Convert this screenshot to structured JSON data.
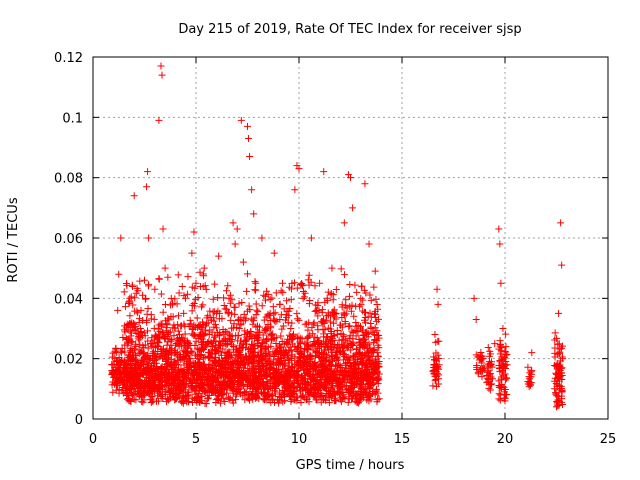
{
  "chart_data": {
    "type": "scatter",
    "title": "Day 215 of 2019, Rate Of TEC Index for receiver sjsp",
    "xlabel": "GPS time / hours",
    "ylabel": "ROTI / TECUs",
    "xlim": [
      0,
      25
    ],
    "ylim": [
      0,
      0.12
    ],
    "xticks": [
      "0",
      "5",
      "10",
      "15",
      "20",
      "25"
    ],
    "yticks": [
      "0",
      "0.02",
      "0.04",
      "0.06",
      "0.08",
      "0.1",
      "0.12"
    ],
    "grid": true,
    "marker": "+",
    "color": "#ff0000",
    "series": [
      {
        "points": [
          [
            1.0,
            0.016
          ],
          [
            1.1,
            0.012
          ],
          [
            1.15,
            0.022
          ],
          [
            1.2,
            0.036
          ],
          [
            1.25,
            0.048
          ],
          [
            1.3,
            0.018
          ],
          [
            1.35,
            0.06
          ],
          [
            1.4,
            0.014
          ],
          [
            1.45,
            0.027
          ],
          [
            1.7,
            0.01
          ],
          [
            1.8,
            0.02
          ],
          [
            1.9,
            0.015
          ],
          [
            2.0,
            0.074
          ],
          [
            2.05,
            0.021
          ],
          [
            2.1,
            0.012
          ],
          [
            2.2,
            0.018
          ],
          [
            2.3,
            0.03
          ],
          [
            2.4,
            0.011
          ],
          [
            2.5,
            0.046
          ],
          [
            2.6,
            0.077
          ],
          [
            2.65,
            0.082
          ],
          [
            2.7,
            0.06
          ],
          [
            2.8,
            0.025
          ],
          [
            2.9,
            0.015
          ],
          [
            3.0,
            0.043
          ],
          [
            3.1,
            0.01
          ],
          [
            3.2,
            0.099
          ],
          [
            3.3,
            0.117
          ],
          [
            3.35,
            0.114
          ],
          [
            3.4,
            0.063
          ],
          [
            3.5,
            0.05
          ],
          [
            3.6,
            0.028
          ],
          [
            3.7,
            0.018
          ],
          [
            3.8,
            0.04
          ],
          [
            3.9,
            0.012
          ],
          [
            4.0,
            0.022
          ],
          [
            4.2,
            0.015
          ],
          [
            4.4,
            0.035
          ],
          [
            4.6,
            0.019
          ],
          [
            4.8,
            0.055
          ],
          [
            4.9,
            0.062
          ],
          [
            5.0,
            0.045
          ],
          [
            5.1,
            0.013
          ],
          [
            5.2,
            0.028
          ],
          [
            5.4,
            0.05
          ],
          [
            5.6,
            0.017
          ],
          [
            5.8,
            0.024
          ],
          [
            6.0,
            0.035
          ],
          [
            6.1,
            0.054
          ],
          [
            6.2,
            0.011
          ],
          [
            6.4,
            0.02
          ],
          [
            6.6,
            0.04
          ],
          [
            6.8,
            0.065
          ],
          [
            6.9,
            0.058
          ],
          [
            7.0,
            0.063
          ],
          [
            7.1,
            0.03
          ],
          [
            7.2,
            0.099
          ],
          [
            7.3,
            0.052
          ],
          [
            7.4,
            0.018
          ],
          [
            7.5,
            0.097
          ],
          [
            7.55,
            0.093
          ],
          [
            7.6,
            0.087
          ],
          [
            7.7,
            0.076
          ],
          [
            7.8,
            0.068
          ],
          [
            7.9,
            0.045
          ],
          [
            8.0,
            0.025
          ],
          [
            8.2,
            0.06
          ],
          [
            8.4,
            0.014
          ],
          [
            8.6,
            0.035
          ],
          [
            8.8,
            0.055
          ],
          [
            9.0,
            0.02
          ],
          [
            9.2,
            0.045
          ],
          [
            9.4,
            0.012
          ],
          [
            9.6,
            0.03
          ],
          [
            9.8,
            0.076
          ],
          [
            9.9,
            0.084
          ],
          [
            10.0,
            0.083
          ],
          [
            10.1,
            0.018
          ],
          [
            10.2,
            0.04
          ],
          [
            10.4,
            0.015
          ],
          [
            10.6,
            0.06
          ],
          [
            10.8,
            0.025
          ],
          [
            11.0,
            0.045
          ],
          [
            11.2,
            0.082
          ],
          [
            11.4,
            0.014
          ],
          [
            11.6,
            0.05
          ],
          [
            11.8,
            0.035
          ],
          [
            12.0,
            0.022
          ],
          [
            12.2,
            0.065
          ],
          [
            12.4,
            0.081
          ],
          [
            12.5,
            0.08
          ],
          [
            12.6,
            0.07
          ],
          [
            12.8,
            0.015
          ],
          [
            13.0,
            0.04
          ],
          [
            13.2,
            0.078
          ],
          [
            13.4,
            0.058
          ],
          [
            13.5,
            0.03
          ],
          [
            13.6,
            0.012
          ],
          [
            13.7,
            0.049
          ],
          [
            13.8,
            0.022
          ],
          [
            16.5,
            0.011
          ],
          [
            16.6,
            0.028
          ],
          [
            16.7,
            0.043
          ],
          [
            16.75,
            0.038
          ],
          [
            16.8,
            0.018
          ],
          [
            18.5,
            0.04
          ],
          [
            18.6,
            0.033
          ],
          [
            18.7,
            0.015
          ],
          [
            18.9,
            0.02
          ],
          [
            19.2,
            0.013
          ],
          [
            19.5,
            0.025
          ],
          [
            19.7,
            0.063
          ],
          [
            19.75,
            0.058
          ],
          [
            19.8,
            0.045
          ],
          [
            19.9,
            0.03
          ],
          [
            20.0,
            0.006
          ],
          [
            20.1,
            0.018
          ],
          [
            21.2,
            0.012
          ],
          [
            21.3,
            0.022
          ],
          [
            22.5,
            0.004
          ],
          [
            22.6,
            0.035
          ],
          [
            22.7,
            0.065
          ],
          [
            22.75,
            0.051
          ],
          [
            22.8,
            0.02
          ]
        ],
        "clusters": [
          {
            "x": [
              0.9,
              1.5
            ],
            "y": [
              0.008,
              0.027
            ],
            "n": 90
          },
          {
            "x": [
              1.5,
              13.9
            ],
            "y": [
              0.005,
              0.03
            ],
            "n": 2600
          },
          {
            "x": [
              1.5,
              13.9
            ],
            "y": [
              0.02,
              0.05
            ],
            "n": 650
          },
          {
            "x": [
              16.5,
              16.8
            ],
            "y": [
              0.01,
              0.028
            ],
            "n": 40
          },
          {
            "x": [
              18.6,
              19.0
            ],
            "y": [
              0.012,
              0.026
            ],
            "n": 25
          },
          {
            "x": [
              19.1,
              19.4
            ],
            "y": [
              0.009,
              0.025
            ],
            "n": 30
          },
          {
            "x": [
              19.7,
              20.1
            ],
            "y": [
              0.006,
              0.03
            ],
            "n": 70
          },
          {
            "x": [
              21.1,
              21.3
            ],
            "y": [
              0.009,
              0.02
            ],
            "n": 18
          },
          {
            "x": [
              22.4,
              22.8
            ],
            "y": [
              0.004,
              0.03
            ],
            "n": 80
          }
        ]
      }
    ]
  }
}
